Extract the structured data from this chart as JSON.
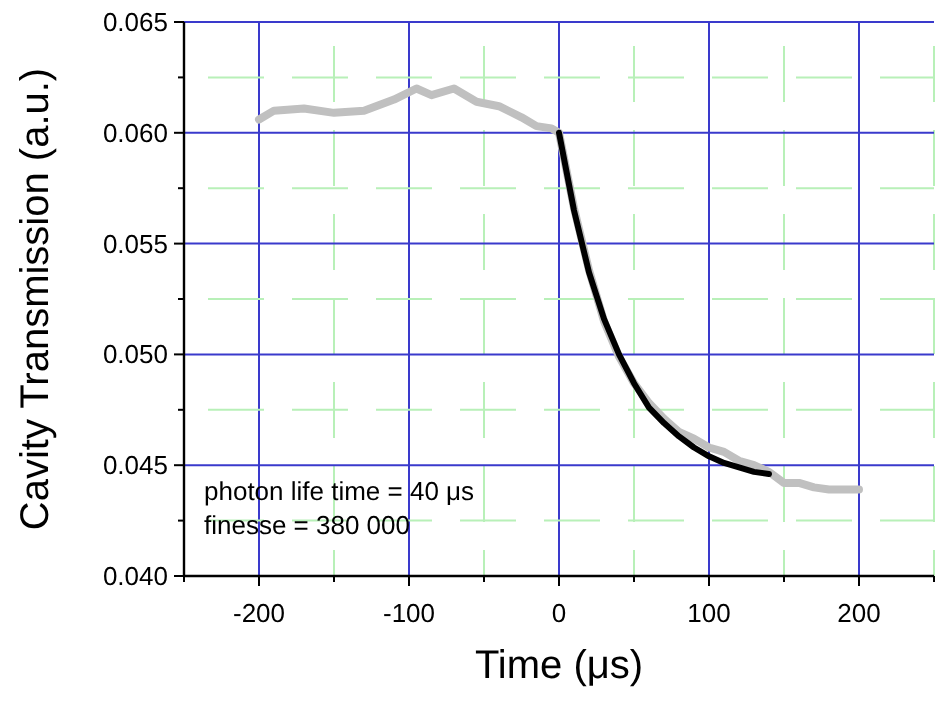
{
  "chart_data": {
    "type": "line",
    "xlabel": "Time (μs)",
    "ylabel": "Cavity Transmission (a.u.)",
    "xlim": [
      -250,
      250
    ],
    "ylim": [
      0.04,
      0.065
    ],
    "xticks": [
      {
        "value": -250,
        "label": null
      },
      -200,
      {
        "value": -150,
        "label": null
      },
      -100,
      {
        "value": -50,
        "label": null
      },
      0,
      {
        "value": 50,
        "label": null
      },
      100,
      {
        "value": 150,
        "label": null
      },
      200,
      {
        "value": 250,
        "label": null
      }
    ],
    "yticks": [
      {
        "value": 0.04,
        "label": "0.040"
      },
      {
        "value": 0.0425,
        "label": null
      },
      {
        "value": 0.045,
        "label": "0.045"
      },
      {
        "value": 0.0475,
        "label": null
      },
      {
        "value": 0.05,
        "label": "0.050"
      },
      {
        "value": 0.0525,
        "label": null
      },
      {
        "value": 0.055,
        "label": "0.055"
      },
      {
        "value": 0.0575,
        "label": null
      },
      {
        "value": 0.06,
        "label": "0.060"
      },
      {
        "value": 0.0625,
        "label": null
      },
      {
        "value": 0.065,
        "label": "0.065"
      }
    ],
    "grid": true,
    "line_style": "solid",
    "series": [
      {
        "color": "#c0c0c0",
        "x": [
          -200,
          -190,
          -170,
          -150,
          -130,
          -110,
          -95,
          -85,
          -70,
          -55,
          -40,
          -25,
          -15,
          -5,
          0,
          10,
          20,
          30,
          40,
          50,
          60,
          70,
          80,
          90,
          100,
          110,
          120,
          130,
          140,
          150,
          160,
          170,
          180,
          190,
          200
        ],
        "values": [
          0.0606,
          0.061,
          0.0611,
          0.0609,
          0.061,
          0.0615,
          0.062,
          0.0617,
          0.062,
          0.0614,
          0.0612,
          0.0607,
          0.0603,
          0.0602,
          0.06,
          0.0566,
          0.0538,
          0.0515,
          0.0499,
          0.0487,
          0.0478,
          0.0471,
          0.0465,
          0.0462,
          0.0458,
          0.0456,
          0.0452,
          0.045,
          0.0447,
          0.0442,
          0.0442,
          0.044,
          0.0439,
          0.0439,
          0.0439
        ]
      },
      {
        "color": "#000000",
        "x": [
          0,
          10,
          20,
          30,
          40,
          50,
          60,
          70,
          80,
          90,
          100,
          110,
          120,
          130,
          140
        ],
        "values": [
          0.06,
          0.0565,
          0.0537,
          0.0516,
          0.05,
          0.0487,
          0.0476,
          0.0469,
          0.0463,
          0.0458,
          0.0454,
          0.0451,
          0.0449,
          0.0447,
          0.0446
        ]
      }
    ],
    "annotations": [
      "photon life time = 40 μs",
      "finesse = 380 000"
    ]
  }
}
